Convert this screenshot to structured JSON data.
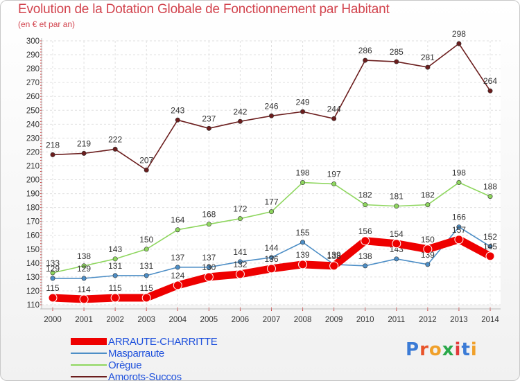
{
  "title": "Evolution de la Dotation Globale de Fonctionnement par Habitant",
  "subtitle": "(en € et par an)",
  "logo": {
    "text": "Proxiti",
    "colors": [
      "#3b7bd6",
      "#e8542a",
      "#f0a02a",
      "#2aa84a",
      "#e23a3a",
      "#3b7bd6",
      "#f0a02a"
    ]
  },
  "chart_data": {
    "type": "line",
    "x": [
      "2000",
      "2001",
      "2002",
      "2003",
      "2004",
      "2005",
      "2006",
      "2007",
      "2008",
      "2009",
      "2010",
      "2011",
      "2012",
      "2013",
      "2014"
    ],
    "ylim": [
      110,
      300
    ],
    "yticks": [
      110,
      120,
      130,
      140,
      150,
      160,
      170,
      180,
      190,
      200,
      210,
      220,
      230,
      240,
      250,
      260,
      270,
      280,
      290,
      300
    ],
    "grid": true,
    "legend_position": "bottom-left",
    "series": [
      {
        "name": "Amorots-Succos",
        "color": "#6b1d1d",
        "values": [
          218,
          219,
          222,
          207,
          243,
          237,
          242,
          246,
          249,
          244,
          286,
          285,
          281,
          298,
          264
        ]
      },
      {
        "name": "Orègue",
        "color": "#8ed65e",
        "values": [
          133,
          138,
          143,
          150,
          164,
          168,
          172,
          177,
          198,
          197,
          182,
          181,
          182,
          198,
          188
        ]
      },
      {
        "name": "Masparraute",
        "color": "#4d8ec6",
        "values": [
          129,
          129,
          131,
          131,
          137,
          137,
          141,
          144,
          155,
          139,
          138,
          143,
          139,
          166,
          152
        ]
      },
      {
        "name": "ARRAUTE-CHARRITTE",
        "color": "#ee0000",
        "values": [
          115,
          114,
          115,
          115,
          124,
          130,
          132,
          136,
          139,
          138,
          156,
          154,
          150,
          157,
          145
        ]
      }
    ]
  }
}
